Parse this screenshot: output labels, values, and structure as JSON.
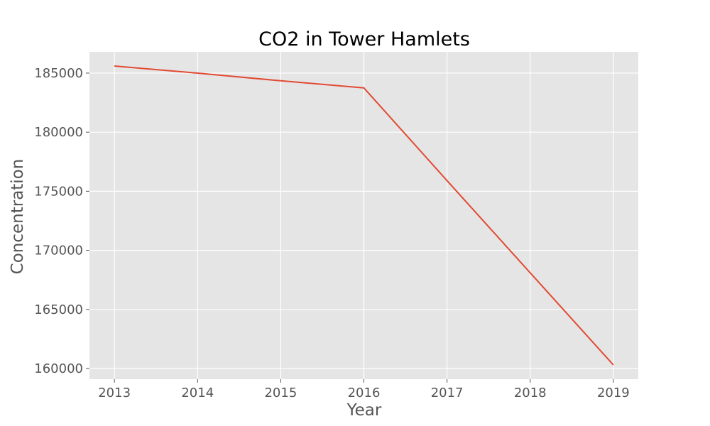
{
  "chart_data": {
    "type": "line",
    "title": "CO2 in Tower Hamlets",
    "xlabel": "Year",
    "ylabel": "Concentration",
    "x": [
      2013,
      2014,
      2015,
      2016,
      2017,
      2018,
      2019
    ],
    "series": [
      {
        "values": [
          185600,
          185000,
          184350,
          183750,
          175900,
          168100,
          160300
        ]
      }
    ],
    "xlim": [
      2012.7,
      2019.3
    ],
    "ylim": [
      159100,
      186800
    ],
    "x_ticks": [
      "2013",
      "2014",
      "2015",
      "2016",
      "2017",
      "2018",
      "2019"
    ],
    "y_ticks": [
      {
        "value": 160000,
        "label": "160000"
      },
      {
        "value": 165000,
        "label": "165000"
      },
      {
        "value": 170000,
        "label": "170000"
      },
      {
        "value": 175000,
        "label": "175000"
      },
      {
        "value": 180000,
        "label": "180000"
      },
      {
        "value": 185000,
        "label": "185000"
      }
    ],
    "grid": true,
    "colors": {
      "background": "#e5e5e5",
      "grid": "#ffffff",
      "line": "#e24a33"
    }
  }
}
